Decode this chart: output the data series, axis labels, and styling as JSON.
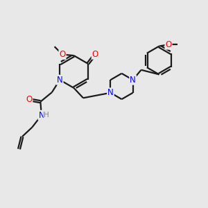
{
  "background_color": "#e8e8e8",
  "bond_color": "#1a1a1a",
  "N_color": "#0000ff",
  "O_color": "#ff0000",
  "H_color": "#808080",
  "line_width": 1.6,
  "font_size_atom": 8.5,
  "fig_width": 3.0,
  "fig_height": 3.0,
  "dpi": 100,
  "xlim": [
    0,
    10
  ],
  "ylim": [
    0,
    10
  ]
}
